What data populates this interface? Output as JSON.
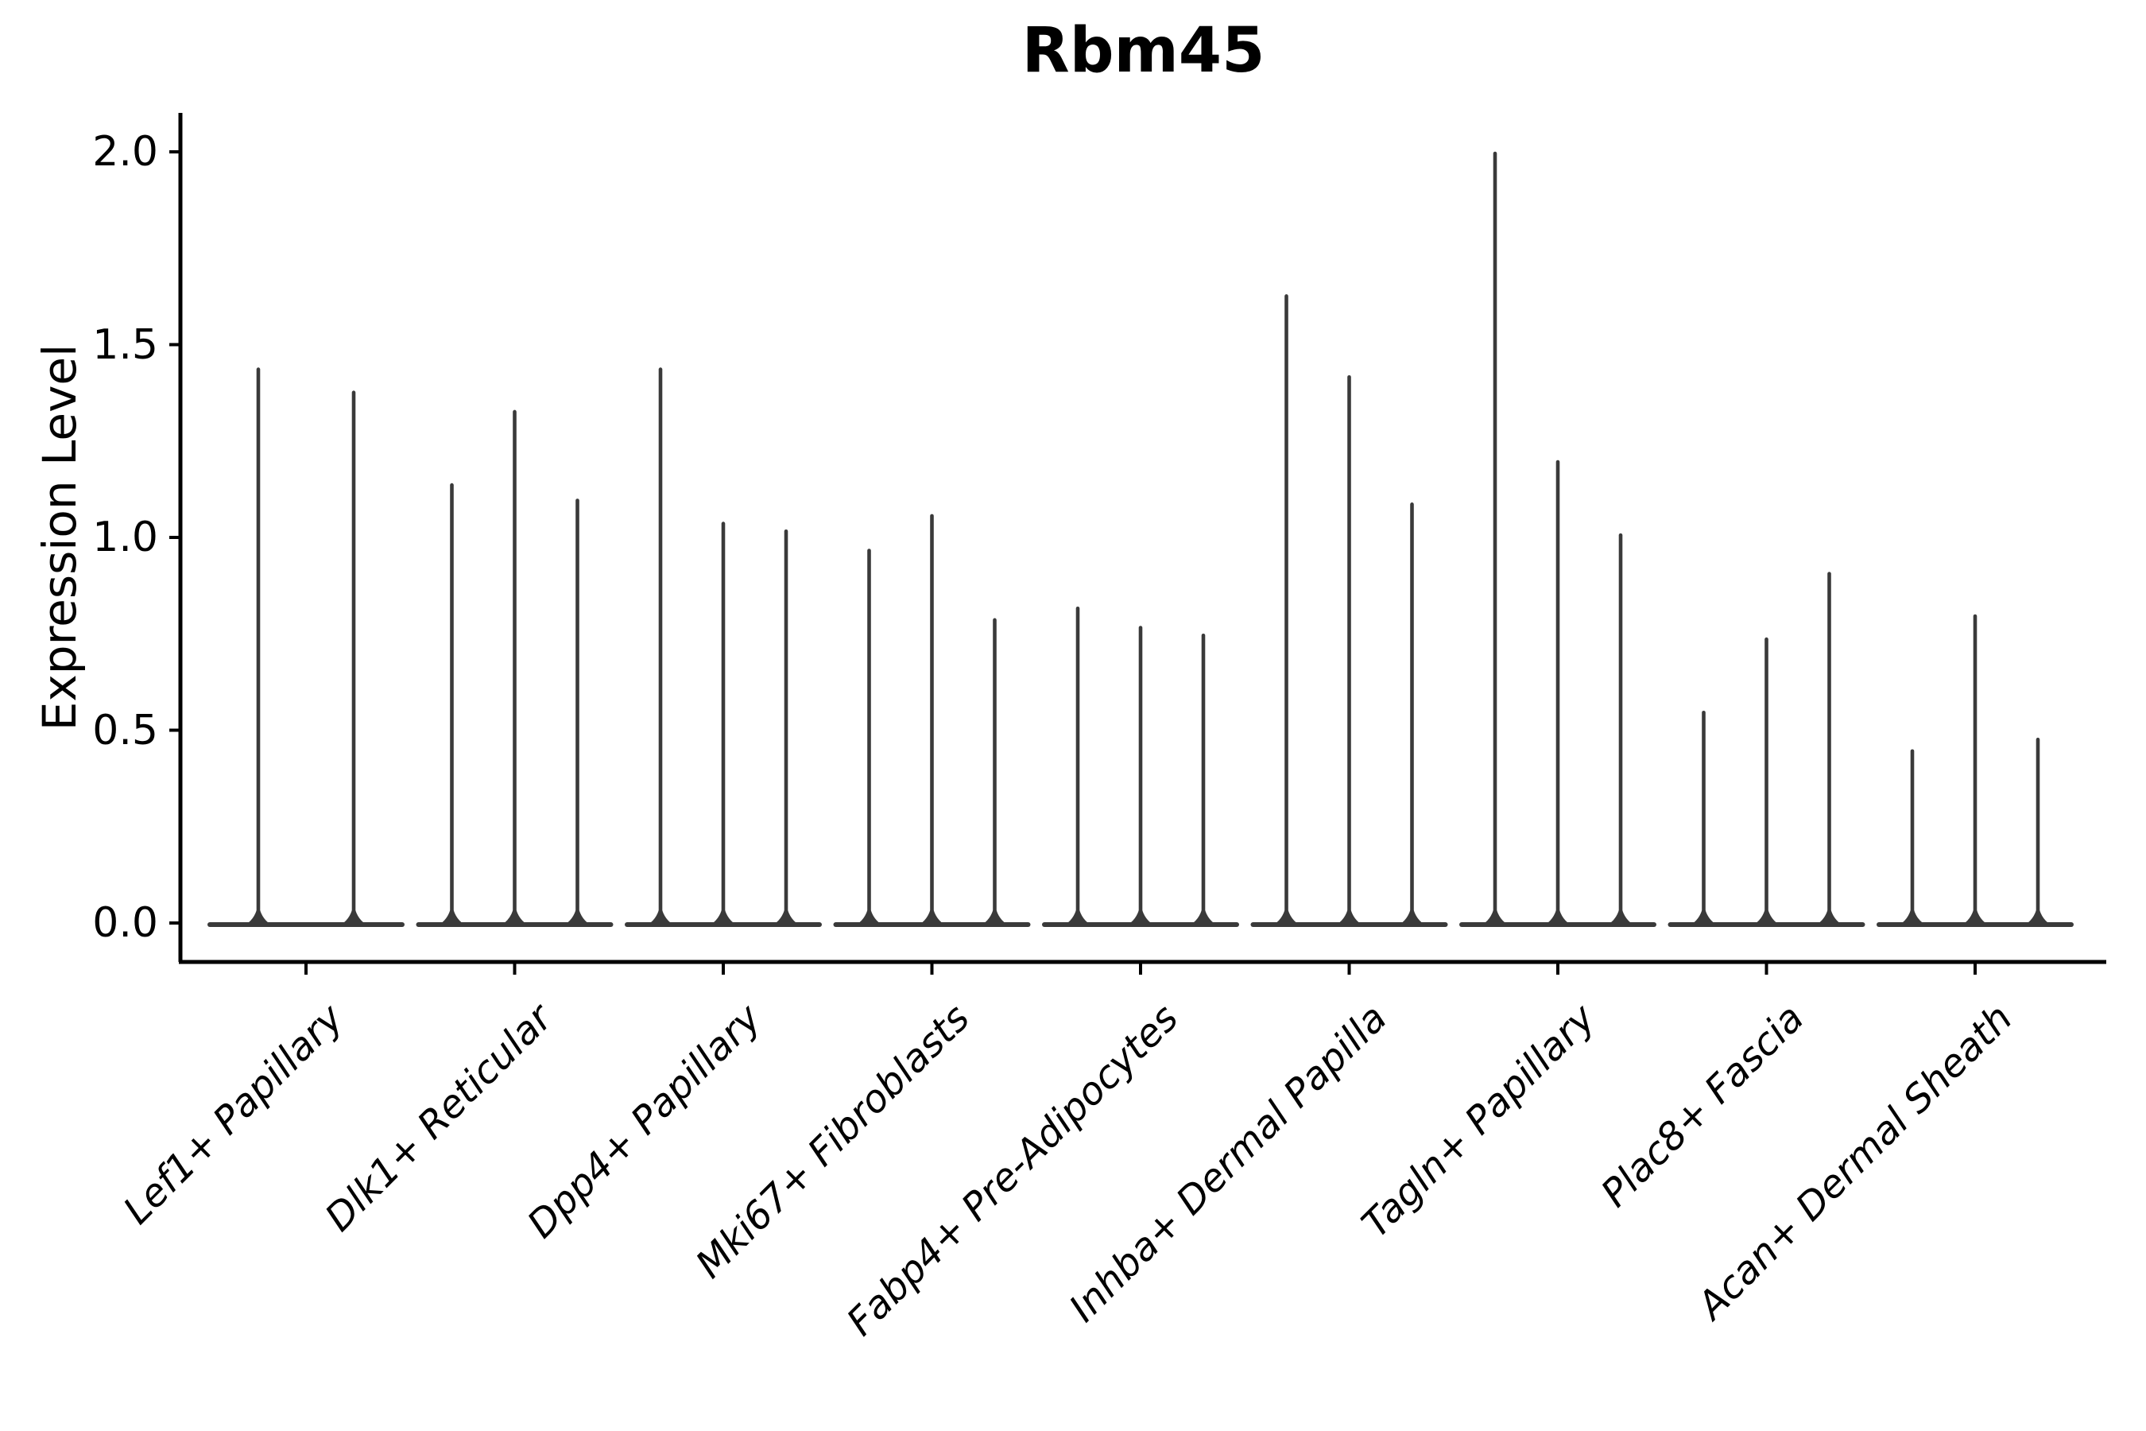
{
  "chart_data": {
    "type": "violin",
    "title": "Rbm45",
    "xlabel": "",
    "ylabel": "Expression Level",
    "ylim": [
      0,
      2.1
    ],
    "ytick_labels": [
      "0.0",
      "0.5",
      "1.0",
      "1.5",
      "2.0"
    ],
    "ytick_values": [
      0.0,
      0.5,
      1.0,
      1.5,
      2.0
    ],
    "grid": false,
    "legend_position": "none",
    "categories": [
      "Lef1+ Papillary",
      "Dlk1+ Reticular",
      "Dpp4+ Papillary",
      "Mki67+ Fibroblasts",
      "Fabp4+ Pre-Adipocytes",
      "Inhba+ Dermal Papilla",
      "Tagln+ Papillary",
      "Plac8+ Fascia",
      "Acan+ Dermal Sheath"
    ],
    "series": [
      {
        "category": "Lef1+ Papillary",
        "violin_peak_expression": [
          1.44,
          1.38
        ]
      },
      {
        "category": "Dlk1+ Reticular",
        "violin_peak_expression": [
          1.14,
          1.33,
          1.1
        ]
      },
      {
        "category": "Dpp4+ Papillary",
        "violin_peak_expression": [
          1.44,
          1.04,
          1.02
        ]
      },
      {
        "category": "Mki67+ Fibroblasts",
        "violin_peak_expression": [
          0.97,
          1.06,
          0.79
        ]
      },
      {
        "category": "Fabp4+ Pre-Adipocytes",
        "violin_peak_expression": [
          0.82,
          0.77,
          0.75
        ]
      },
      {
        "category": "Inhba+ Dermal Papilla",
        "violin_peak_expression": [
          1.63,
          1.42,
          1.09
        ]
      },
      {
        "category": "Tagln+ Papillary",
        "violin_peak_expression": [
          2.0,
          1.2,
          1.01
        ]
      },
      {
        "category": "Plac8+ Fascia",
        "violin_peak_expression": [
          0.55,
          0.74,
          0.91
        ]
      },
      {
        "category": "Acan+ Dermal Sheath",
        "violin_peak_expression": [
          0.45,
          0.8,
          0.48
        ]
      }
    ],
    "violin_shape_note": "each violin is a thin spike rising from a wide flat base at expression 0 up to its peak expression value",
    "colors": {
      "violin": "#3a3a3a",
      "axis": "#000000",
      "text": "#000000",
      "background": "#ffffff"
    }
  }
}
